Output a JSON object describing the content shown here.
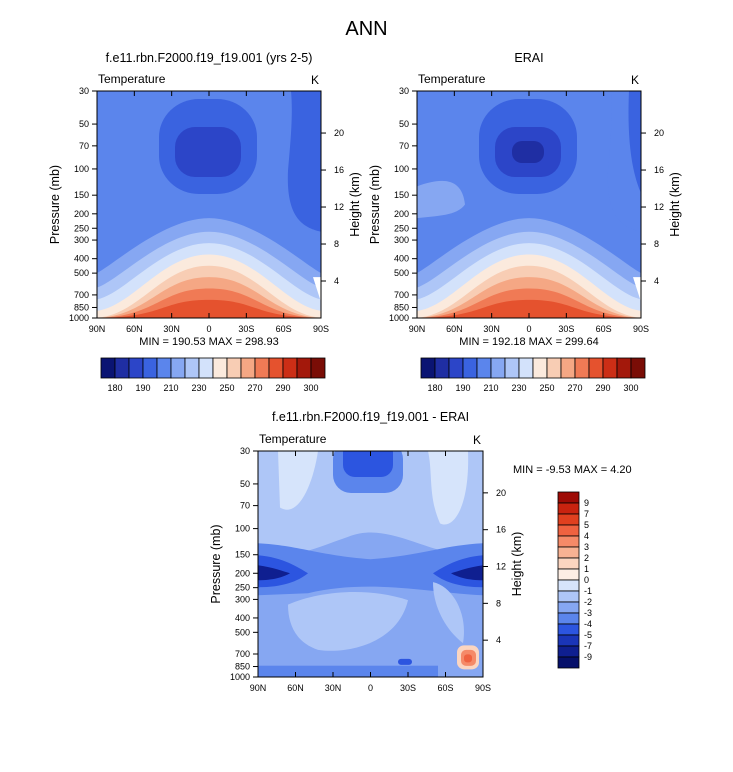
{
  "page_title": "ANN",
  "panels": [
    {
      "title": "f.e11.rbn.F2000.f19_f19.001 (yrs 2-5)",
      "left_label": "Temperature",
      "right_label": "K",
      "xticks": [
        "90N",
        "60N",
        "30N",
        "0",
        "30S",
        "60S",
        "90S"
      ],
      "yticks": [
        "30",
        "50",
        "70",
        "100",
        "150",
        "200",
        "250",
        "300",
        "400",
        "500",
        "700",
        "850",
        "1000"
      ],
      "height_ticks": [
        "20",
        "16",
        "12",
        "8",
        "4"
      ],
      "ylabel": "Pressure (mb)",
      "ylabel_right": "Height (km)",
      "stats": "MIN = 190.53  MAX = 298.93"
    },
    {
      "title": "ERAI",
      "left_label": "Temperature",
      "right_label": "K",
      "xticks": [
        "90N",
        "60N",
        "30N",
        "0",
        "30S",
        "60S",
        "90S"
      ],
      "yticks": [
        "30",
        "50",
        "70",
        "100",
        "150",
        "200",
        "250",
        "300",
        "400",
        "500",
        "700",
        "850",
        "1000"
      ],
      "height_ticks": [
        "20",
        "16",
        "12",
        "8",
        "4"
      ],
      "ylabel": "Pressure (mb)",
      "ylabel_right": "Height (km)",
      "stats": "MIN = 192.18  MAX = 299.64"
    },
    {
      "title": "f.e11.rbn.F2000.f19_f19.001 - ERAI",
      "left_label": "Temperature",
      "right_label": "K",
      "xticks": [
        "90N",
        "60N",
        "30N",
        "0",
        "30S",
        "60S",
        "90S"
      ],
      "yticks": [
        "30",
        "50",
        "70",
        "100",
        "150",
        "200",
        "250",
        "300",
        "400",
        "500",
        "700",
        "850",
        "1000"
      ],
      "height_ticks": [
        "20",
        "16",
        "12",
        "8",
        "4"
      ],
      "ylabel": "Pressure (mb)",
      "ylabel_right": "Height (km)",
      "stats": "MIN = -9.53  MAX =  4.20"
    }
  ],
  "colorbar_top": {
    "labels": [
      "180",
      "190",
      "210",
      "230",
      "250",
      "270",
      "290",
      "300"
    ],
    "colors": [
      "#0a1473",
      "#1f2ea3",
      "#2c45c8",
      "#3a63e0",
      "#5b85ec",
      "#86a7f2",
      "#aec6f7",
      "#d3e2fb",
      "#fbeadd",
      "#f8cdb4",
      "#f5a784",
      "#f07a55",
      "#e5522e",
      "#cc2e16",
      "#a3180b",
      "#7a0d06"
    ]
  },
  "colorbar_diff": {
    "labels": [
      "9",
      "7",
      "5",
      "4",
      "3",
      "2",
      "1",
      "0",
      "-1",
      "-2",
      "-3",
      "-4",
      "-5",
      "-7",
      "-9"
    ],
    "colors": [
      "#9e0b05",
      "#c9230f",
      "#e0401f",
      "#ef6240",
      "#f58a68",
      "#f8b293",
      "#fbd5c0",
      "#fdeee4",
      "#d6e4fb",
      "#aec6f7",
      "#86a7f2",
      "#5b85ec",
      "#2c55e0",
      "#1a35b8",
      "#0f1f90",
      "#06106a"
    ]
  },
  "chart_data": [
    {
      "type": "heatmap",
      "title": "f.e11.rbn.F2000.f19_f19.001 (yrs 2-5)",
      "xlabel": "",
      "ylabel": "Pressure (mb)",
      "ylabel_right": "Height (km)",
      "x_categories": [
        "90N",
        "60N",
        "30N",
        "0",
        "30S",
        "60S",
        "90S"
      ],
      "y_levels_mb": [
        30,
        50,
        70,
        100,
        150,
        200,
        250,
        300,
        400,
        500,
        700,
        850,
        1000
      ],
      "y_scale": "log (inverted)",
      "units": "K",
      "min": 190.53,
      "max": 298.93,
      "levels": [
        180,
        190,
        200,
        210,
        220,
        230,
        240,
        250,
        260,
        270,
        280,
        290,
        300
      ]
    },
    {
      "type": "heatmap",
      "title": "ERAI",
      "xlabel": "",
      "ylabel": "Pressure (mb)",
      "ylabel_right": "Height (km)",
      "x_categories": [
        "90N",
        "60N",
        "30N",
        "0",
        "30S",
        "60S",
        "90S"
      ],
      "y_levels_mb": [
        30,
        50,
        70,
        100,
        150,
        200,
        250,
        300,
        400,
        500,
        700,
        850,
        1000
      ],
      "y_scale": "log (inverted)",
      "units": "K",
      "min": 192.18,
      "max": 299.64,
      "levels": [
        180,
        190,
        200,
        210,
        220,
        230,
        240,
        250,
        260,
        270,
        280,
        290,
        300
      ]
    },
    {
      "type": "heatmap",
      "title": "f.e11.rbn.F2000.f19_f19.001 - ERAI",
      "xlabel": "",
      "ylabel": "Pressure (mb)",
      "ylabel_right": "Height (km)",
      "x_categories": [
        "90N",
        "60N",
        "30N",
        "0",
        "30S",
        "60S",
        "90S"
      ],
      "y_levels_mb": [
        30,
        50,
        70,
        100,
        150,
        200,
        250,
        300,
        400,
        500,
        700,
        850,
        1000
      ],
      "y_scale": "log (inverted)",
      "units": "K",
      "min": -9.53,
      "max": 4.2,
      "levels": [
        -9,
        -7,
        -5,
        -4,
        -3,
        -2,
        -1,
        0,
        1,
        2,
        3,
        4,
        5,
        7,
        9
      ]
    }
  ]
}
